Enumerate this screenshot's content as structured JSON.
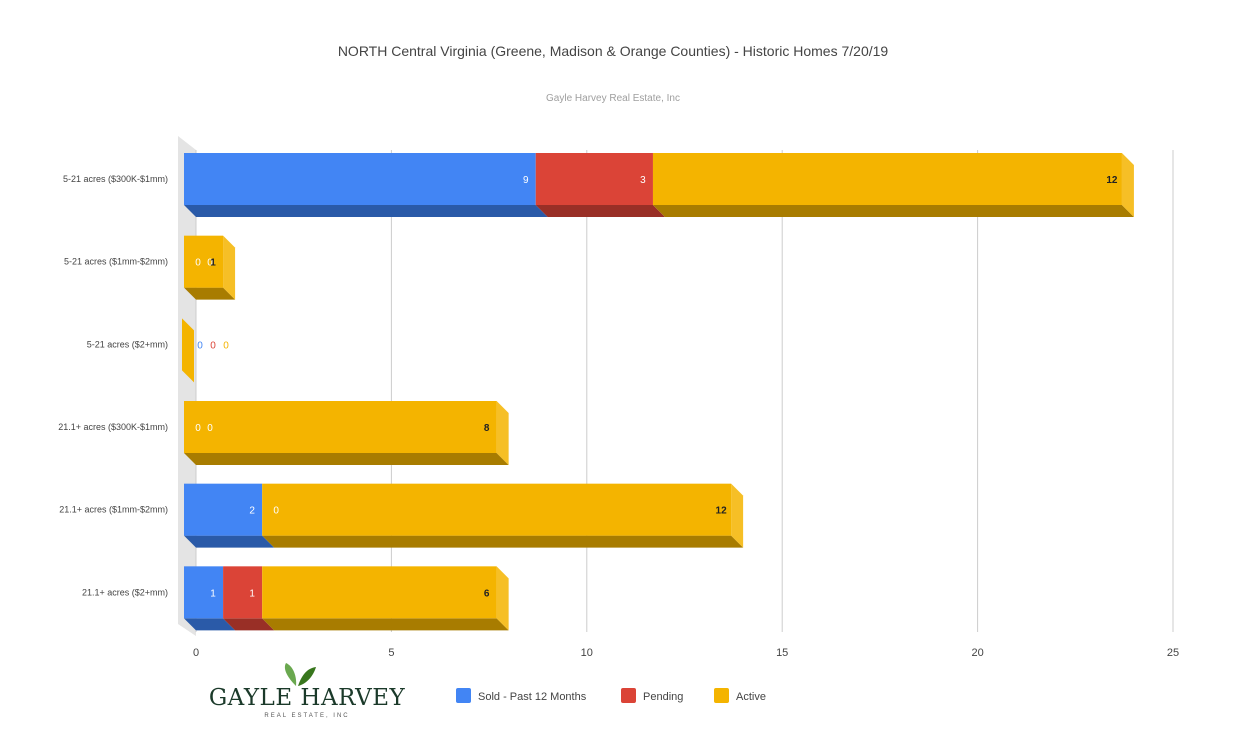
{
  "chart_data": {
    "type": "bar",
    "orientation": "horizontal",
    "stacked": true,
    "three_d": true,
    "title": "NORTH Central Virginia (Greene, Madison & Orange Counties) - Historic Homes 7/20/19",
    "subtitle": "Gayle Harvey Real Estate, Inc",
    "categories": [
      "5-21 acres ($300K-$1mm)",
      "5-21 acres ($1mm-$2mm)",
      "5-21 acres ($2+mm)",
      "21.1+ acres ($300K-$1mm)",
      "21.1+ acres ($1mm-$2mm)",
      "21.1+ acres ($2+mm)"
    ],
    "series": [
      {
        "name": "Sold - Past 12 Months",
        "color": "#4285f4",
        "side_color": "#2a5aa8",
        "values": [
          9,
          0,
          0,
          0,
          2,
          1
        ]
      },
      {
        "name": "Pending",
        "color": "#db4437",
        "side_color": "#992f26",
        "values": [
          3,
          0,
          0,
          0,
          0,
          1
        ]
      },
      {
        "name": "Active",
        "color": "#f4b400",
        "side_color": "#a87c00",
        "values": [
          12,
          1,
          0,
          8,
          12,
          6
        ]
      }
    ],
    "data_labels": [
      [
        "9",
        "3",
        "12"
      ],
      [
        "0",
        "0",
        "1"
      ],
      [
        "0",
        "0",
        "0"
      ],
      [
        "0",
        "0",
        "8"
      ],
      [
        "2",
        "0",
        "12"
      ],
      [
        "1",
        "1",
        "6"
      ]
    ],
    "xlim": [
      0,
      25
    ],
    "xticks": [
      0,
      5,
      10,
      15,
      20,
      25
    ],
    "grid": true,
    "legend_position": "bottom"
  },
  "logo": {
    "name": "GAYLE HARVEY",
    "tagline": "REAL ESTATE, INC"
  }
}
